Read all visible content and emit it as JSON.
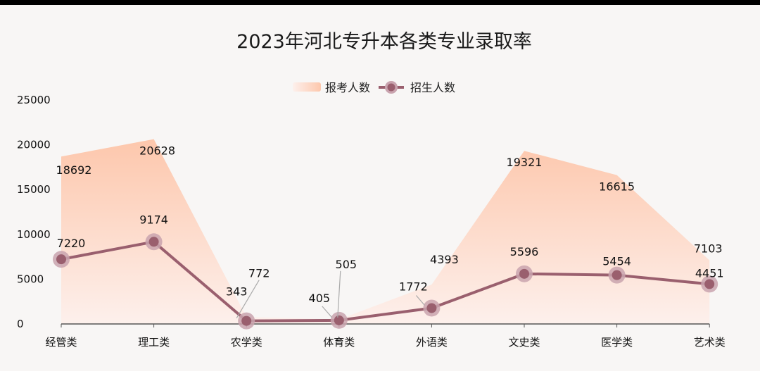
{
  "chart_data": {
    "type": "line",
    "title": "2023年河北专升本各类专业录取率",
    "categories": [
      "经管类",
      "理工类",
      "农学类",
      "体育类",
      "外语类",
      "文史类",
      "医学类",
      "艺术类"
    ],
    "series": [
      {
        "name": "报考人数",
        "kind": "area",
        "values": [
          18692,
          20628,
          772,
          505,
          4393,
          19321,
          16615,
          7103
        ]
      },
      {
        "name": "招生人数",
        "kind": "line",
        "values": [
          7220,
          9174,
          343,
          405,
          1772,
          5596,
          5454,
          4451
        ]
      }
    ],
    "yticks": [
      0,
      5000,
      10000,
      15000,
      20000,
      25000
    ],
    "ylim": [
      0,
      25000
    ],
    "legend_position": "top-center",
    "colors": {
      "area_top": "#fdc7ac",
      "area_bottom": "#fdf0ec",
      "line": "#9a5f6e",
      "marker_halo": "#c9a3ae",
      "axis": "#555555",
      "leader": "#aaaaaa"
    }
  }
}
